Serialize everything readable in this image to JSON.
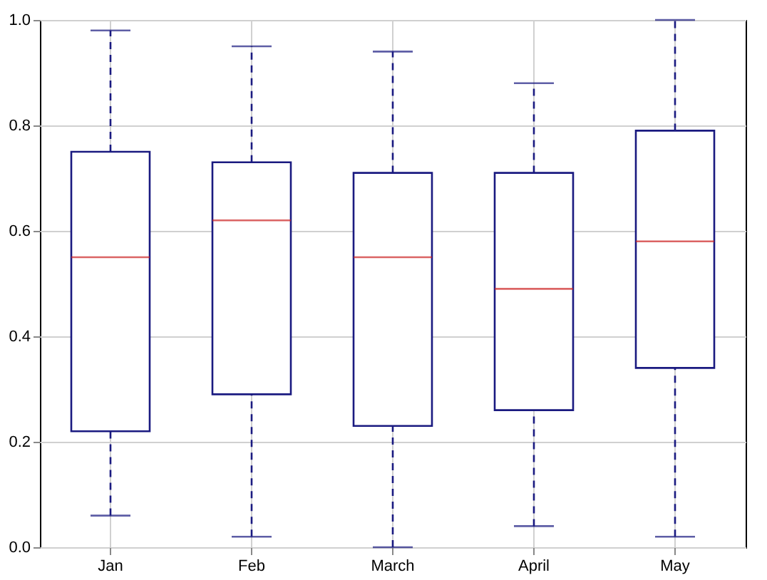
{
  "chart_data": {
    "type": "box",
    "categories": [
      "Jan",
      "Feb",
      "March",
      "April",
      "May"
    ],
    "series": [
      {
        "color": "#1a1a80",
        "boxes": [
          {
            "low": 0.06,
            "q1": 0.22,
            "median": 0.55,
            "q3": 0.75,
            "high": 0.98
          },
          {
            "low": 0.02,
            "q1": 0.29,
            "median": 0.62,
            "q3": 0.73,
            "high": 0.95
          },
          {
            "low": 0.0,
            "q1": 0.23,
            "median": 0.55,
            "q3": 0.71,
            "high": 0.94
          },
          {
            "low": 0.04,
            "q1": 0.26,
            "median": 0.49,
            "q3": 0.71,
            "high": 0.88
          },
          {
            "low": 0.02,
            "q1": 0.34,
            "median": 0.58,
            "q3": 0.79,
            "high": 1.0
          }
        ]
      }
    ],
    "ylim": [
      0,
      1
    ],
    "yticks": [
      {
        "value": 0,
        "label": "0.0"
      },
      0.2,
      0.4,
      0.6,
      0.8,
      {
        "value": 1,
        "label": "1.0"
      }
    ],
    "grid": true,
    "line_style": "dashed"
  }
}
